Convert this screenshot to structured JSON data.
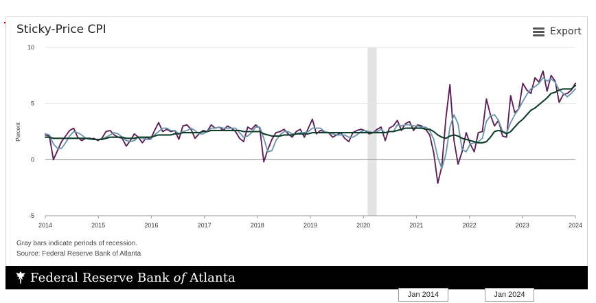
{
  "title": "Sticky-Price CPI",
  "export_label": "Export",
  "note_recession": "Gray bars indicate periods of recession.",
  "note_source": "Source: Federal Reserve Bank of Atlanta",
  "banner": {
    "name_prefix": "Federal Reserve Bank ",
    "name_of": "of",
    "name_suffix": " Atlanta"
  },
  "navigator": {
    "start_label": "Jan 2014",
    "end_label": "Jan 2024"
  },
  "colors": {
    "monthly": "#5b1f55",
    "three_month": "#6d98ab",
    "twelve_month": "#0f3d2a",
    "recession": "#e3e3e3",
    "grid": "#e6e6e6"
  },
  "chart_data": {
    "type": "line",
    "ylabel": "Percent",
    "ylim": [
      -5,
      10
    ],
    "xlim": [
      2014,
      2024
    ],
    "yticks": [
      -5,
      0,
      5,
      10
    ],
    "xticks": [
      "2014",
      "2015",
      "2016",
      "2017",
      "2018",
      "2019",
      "2020",
      "2021",
      "2022",
      "2023",
      "2024"
    ],
    "grid": true,
    "recession": [
      {
        "start": 2020.08,
        "end": 2020.25
      }
    ],
    "series": [
      {
        "key": "monthly",
        "values": [
          2.2,
          2.1,
          0.0,
          0.8,
          1.6,
          2.1,
          2.6,
          2.8,
          2.0,
          1.7,
          1.9,
          1.8,
          1.9,
          1.7,
          1.9,
          2.5,
          2.6,
          2.2,
          2.0,
          1.9,
          1.2,
          1.7,
          2.3,
          2.0,
          1.5,
          2.0,
          1.8,
          2.6,
          3.3,
          2.5,
          2.7,
          2.5,
          2.6,
          1.8,
          3.0,
          3.1,
          2.7,
          1.9,
          2.3,
          2.6,
          2.5,
          3.1,
          2.8,
          2.9,
          2.6,
          3.0,
          2.8,
          2.5,
          1.9,
          1.6,
          2.9,
          2.7,
          3.1,
          2.8,
          -0.2,
          0.9,
          1.8,
          2.4,
          2.5,
          2.7,
          2.3,
          2.0,
          2.5,
          2.7,
          2.0,
          2.8,
          3.6,
          2.3,
          2.6,
          2.5,
          2.4,
          2.0,
          2.2,
          2.4,
          1.9,
          1.6,
          2.4,
          2.6,
          2.7,
          2.6,
          2.3,
          2.4,
          2.7,
          2.9,
          1.7,
          2.8,
          3.0,
          3.5,
          2.6,
          3.2,
          3.4,
          2.6,
          3.1,
          3.0,
          2.7,
          2.2,
          0.6,
          -2.1,
          -0.6,
          3.7,
          6.7,
          1.7,
          -0.4,
          0.7,
          2.4,
          1.4,
          0.7,
          2.4,
          2.5,
          5.4,
          4.0,
          3.0,
          3.5,
          2.1,
          2.0,
          5.7,
          4.2,
          4.5,
          6.8,
          6.2,
          5.9,
          7.3,
          6.9,
          7.9,
          6.1,
          7.5,
          7.0,
          5.1,
          5.8,
          5.9,
          6.2,
          6.8
        ]
      },
      {
        "key": "three_month",
        "values": [
          2.3,
          2.2,
          1.4,
          1.0,
          1.0,
          1.5,
          2.1,
          2.5,
          2.4,
          2.2,
          1.9,
          1.8,
          1.8,
          1.8,
          1.8,
          2.0,
          2.2,
          2.4,
          2.3,
          2.0,
          1.7,
          1.6,
          1.7,
          2.0,
          1.9,
          1.8,
          1.8,
          2.2,
          2.5,
          2.8,
          2.8,
          2.6,
          2.6,
          2.3,
          2.5,
          2.6,
          2.8,
          2.6,
          2.3,
          2.3,
          2.5,
          2.8,
          2.8,
          2.9,
          2.8,
          2.8,
          2.8,
          2.8,
          2.4,
          2.0,
          2.1,
          2.4,
          2.9,
          2.9,
          1.9,
          0.7,
          0.8,
          1.7,
          2.2,
          2.5,
          2.5,
          2.3,
          2.3,
          2.4,
          2.4,
          2.5,
          2.8,
          2.8,
          2.8,
          2.5,
          2.4,
          2.3,
          2.2,
          2.2,
          2.2,
          2.0,
          2.0,
          2.2,
          2.5,
          2.6,
          2.5,
          2.4,
          2.5,
          2.7,
          2.4,
          2.5,
          2.5,
          3.1,
          3.0,
          3.1,
          3.1,
          3.0,
          3.0,
          2.9,
          2.9,
          2.6,
          1.8,
          0.2,
          -0.8,
          0.5,
          2.9,
          4.0,
          3.2,
          0.9,
          0.7,
          1.4,
          1.5,
          1.6,
          1.9,
          3.4,
          3.9,
          4.0,
          3.5,
          2.5,
          2.4,
          3.3,
          4.0,
          4.5,
          5.2,
          5.8,
          6.3,
          6.5,
          6.8,
          7.3,
          7.0,
          7.2,
          6.9,
          6.2,
          5.9,
          5.6,
          5.9,
          6.3
        ]
      },
      {
        "key": "twelve_month",
        "values": [
          2.0,
          2.0,
          1.9,
          1.9,
          1.9,
          1.9,
          1.9,
          1.9,
          1.9,
          1.9,
          1.9,
          1.9,
          1.8,
          1.8,
          1.8,
          1.9,
          2.0,
          2.0,
          2.0,
          2.0,
          1.9,
          1.9,
          1.9,
          2.0,
          2.0,
          2.0,
          2.0,
          2.1,
          2.2,
          2.2,
          2.2,
          2.2,
          2.3,
          2.3,
          2.4,
          2.4,
          2.4,
          2.4,
          2.4,
          2.5,
          2.5,
          2.6,
          2.6,
          2.6,
          2.6,
          2.6,
          2.6,
          2.6,
          2.6,
          2.5,
          2.5,
          2.5,
          2.5,
          2.5,
          2.3,
          2.2,
          2.1,
          2.1,
          2.1,
          2.2,
          2.2,
          2.2,
          2.3,
          2.3,
          2.3,
          2.3,
          2.4,
          2.4,
          2.4,
          2.4,
          2.4,
          2.4,
          2.4,
          2.4,
          2.4,
          2.4,
          2.4,
          2.4,
          2.4,
          2.4,
          2.4,
          2.4,
          2.4,
          2.4,
          2.4,
          2.5,
          2.5,
          2.6,
          2.7,
          2.8,
          2.8,
          2.8,
          2.8,
          2.8,
          2.7,
          2.7,
          2.5,
          2.2,
          2.0,
          1.9,
          2.1,
          2.2,
          2.1,
          1.9,
          1.8,
          1.7,
          1.6,
          1.5,
          1.5,
          1.6,
          2.0,
          2.5,
          2.6,
          2.5,
          2.3,
          2.5,
          2.9,
          3.3,
          3.6,
          4.0,
          4.4,
          4.6,
          4.9,
          5.2,
          5.5,
          5.9,
          6.0,
          6.2,
          6.3,
          6.3,
          6.3,
          6.6
        ]
      }
    ]
  }
}
